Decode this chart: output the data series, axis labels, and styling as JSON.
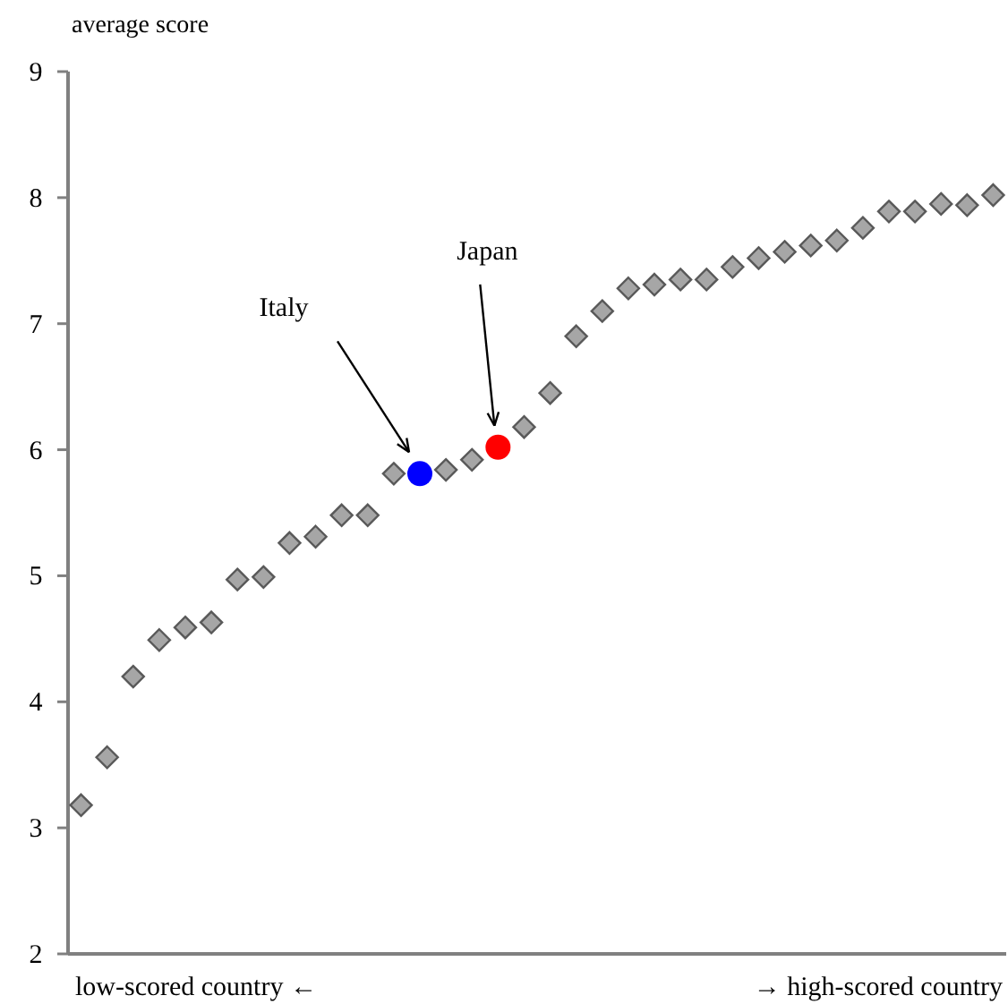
{
  "chart_data": {
    "type": "scatter",
    "ylabel": "average score",
    "categories": [
      null,
      null,
      null,
      null,
      null,
      null,
      null,
      null,
      null,
      null,
      null,
      null,
      null,
      null,
      null,
      null,
      null,
      null,
      null,
      null,
      null,
      null,
      null,
      null,
      null,
      null,
      null,
      null,
      null,
      null,
      null,
      null,
      null,
      null,
      null,
      null
    ],
    "ylim": [
      2,
      9
    ],
    "yticks": [
      2,
      3,
      4,
      5,
      6,
      7,
      8,
      9
    ],
    "grid": false,
    "series": [
      {
        "color": "#a6a6a6",
        "marker": "diamond",
        "values": [
          3.18,
          3.56,
          4.2,
          4.49,
          4.59,
          4.63,
          4.97,
          4.99,
          5.26,
          5.31,
          5.48,
          5.48,
          5.81,
          null,
          5.84,
          5.92,
          null,
          6.18,
          6.45,
          6.9,
          7.1,
          7.28,
          7.31,
          7.35,
          7.35,
          7.45,
          7.52,
          7.57,
          7.62,
          7.66,
          7.76,
          7.89,
          7.89,
          7.95,
          7.94,
          8.02
        ]
      },
      {
        "name": "Italy",
        "color": "#0000ff",
        "marker": "circle",
        "values": [
          null,
          null,
          null,
          null,
          null,
          null,
          null,
          null,
          null,
          null,
          null,
          null,
          null,
          5.81,
          null,
          null,
          null,
          null,
          null,
          null,
          null,
          null,
          null,
          null,
          null,
          null,
          null,
          null,
          null,
          null,
          null,
          null,
          null,
          null,
          null,
          null
        ]
      },
      {
        "name": "Japan",
        "color": "#ff0000",
        "marker": "circle",
        "values": [
          null,
          null,
          null,
          null,
          null,
          null,
          null,
          null,
          null,
          null,
          null,
          null,
          null,
          null,
          null,
          null,
          6.02,
          null,
          null,
          null,
          null,
          null,
          null,
          null,
          null,
          null,
          null,
          null,
          null,
          null,
          null,
          null,
          null,
          null,
          null,
          null
        ]
      }
    ],
    "annotations": [
      "low-scored country ←",
      "→ high-scored country"
    ]
  }
}
